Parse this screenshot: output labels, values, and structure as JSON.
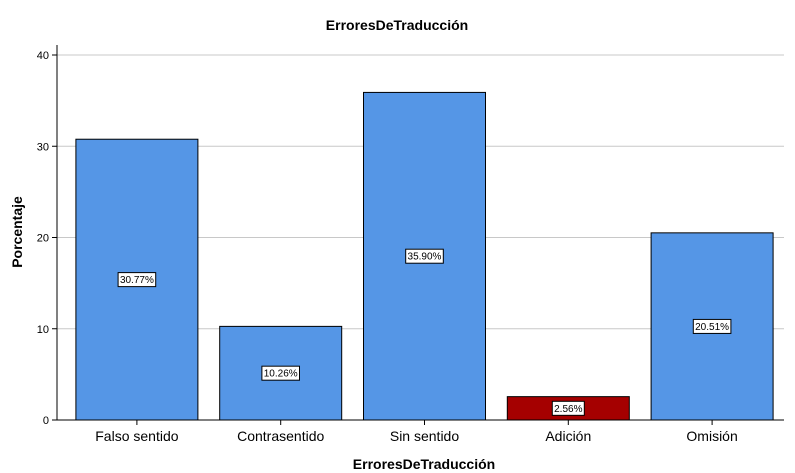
{
  "chart_data": {
    "type": "bar",
    "title": "ErroresDeTraducción",
    "xlabel": "ErroresDeTraducción",
    "ylabel": "Porcentaje",
    "categories": [
      "Falso sentido",
      "Contrasentido",
      "Sin sentido",
      "Adición",
      "Omisión"
    ],
    "values": [
      30.77,
      10.26,
      35.9,
      2.56,
      20.51
    ],
    "data_labels": [
      "30.77%",
      "10.26%",
      "35.90%",
      "2.56%",
      "20.51%"
    ],
    "bar_colors": [
      "#5596e6",
      "#5596e6",
      "#5596e6",
      "#a50000",
      "#5596e6"
    ],
    "ylim": [
      0,
      40
    ],
    "yticks": [
      0,
      10,
      20,
      30,
      40
    ],
    "grid": true,
    "legend": "none"
  }
}
